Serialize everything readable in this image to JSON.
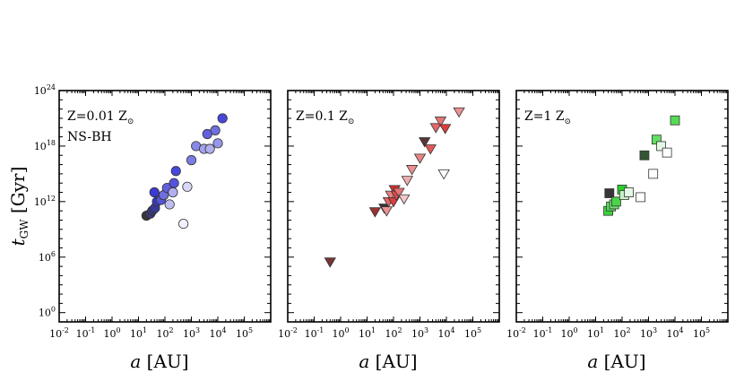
{
  "chart_data": {
    "type": "scatter",
    "x_scale": "log",
    "y_scale": "log",
    "xlim": [
      0.01,
      1000000
    ],
    "ylim": [
      0.1,
      1e+24
    ],
    "ylabel": {
      "main": "t",
      "sub": "GW",
      "unit": " [Gyr]"
    },
    "xlabel": {
      "main": "a",
      "unit": " [AU]"
    },
    "y_ticks": [
      {
        "value": 1,
        "base": "10",
        "exp": "0"
      },
      {
        "value": 1000000.0,
        "base": "10",
        "exp": "6"
      },
      {
        "value": 1000000000000.0,
        "base": "10",
        "exp": "12"
      },
      {
        "value": 1e+18,
        "base": "10",
        "exp": "18"
      },
      {
        "value": 1e+24,
        "base": "10",
        "exp": "24"
      }
    ],
    "x_ticks": [
      {
        "value": 0.01,
        "base": "10",
        "exp": "-2"
      },
      {
        "value": 0.1,
        "base": "10",
        "exp": "-1"
      },
      {
        "value": 1,
        "base": "10",
        "exp": "0"
      },
      {
        "value": 10,
        "base": "10",
        "exp": "1"
      },
      {
        "value": 100,
        "base": "10",
        "exp": "2"
      },
      {
        "value": 1000,
        "base": "10",
        "exp": "3"
      },
      {
        "value": 10000,
        "base": "10",
        "exp": "4"
      },
      {
        "value": 100000,
        "base": "10",
        "exp": "5"
      }
    ],
    "panels": [
      {
        "label": "Z=0.01 Z",
        "solar_symbol": "⊙",
        "sublabel": "NS-BH",
        "marker": "circle",
        "color": "#3a3ad8",
        "points": [
          {
            "x": 20,
            "y": 30000000000.0,
            "shade": 0.0
          },
          {
            "x": 28,
            "y": 50000000000.0,
            "shade": 0.1
          },
          {
            "x": 33,
            "y": 100000000000.0,
            "shade": 0.1
          },
          {
            "x": 42,
            "y": 200000000000.0,
            "shade": 0.15
          },
          {
            "x": 50,
            "y": 1000000000000.0,
            "shade": 0.2
          },
          {
            "x": 40,
            "y": 10000000000000.0,
            "shade": 0.25
          },
          {
            "x": 70,
            "y": 1500000000000.0,
            "shade": 0.35
          },
          {
            "x": 90,
            "y": 5000000000000.0,
            "shade": 0.45
          },
          {
            "x": 120,
            "y": 30000000000000.0,
            "shade": 0.4
          },
          {
            "x": 150,
            "y": 500000000000.0,
            "shade": 0.75
          },
          {
            "x": 200,
            "y": 10000000000000.0,
            "shade": 0.7
          },
          {
            "x": 220,
            "y": 100000000000000.0,
            "shade": 0.35
          },
          {
            "x": 260,
            "y": 2000000000000000.0,
            "shade": 0.3
          },
          {
            "x": 500,
            "y": 4000000000.0,
            "shade": 0.95
          },
          {
            "x": 700,
            "y": 40000000000000.0,
            "shade": 0.85
          },
          {
            "x": 1000,
            "y": 3e+16,
            "shade": 0.5
          },
          {
            "x": 1500,
            "y": 1e+18,
            "shade": 0.55
          },
          {
            "x": 3000,
            "y": 5e+17,
            "shade": 0.65
          },
          {
            "x": 4000,
            "y": 2e+19,
            "shade": 0.4
          },
          {
            "x": 5000,
            "y": 5e+17,
            "shade": 0.7
          },
          {
            "x": 8000,
            "y": 5e+19,
            "shade": 0.45
          },
          {
            "x": 10000,
            "y": 2e+18,
            "shade": 0.6
          },
          {
            "x": 15000,
            "y": 1e+21,
            "shade": 0.3
          }
        ]
      },
      {
        "label": "Z=0.1 Z",
        "solar_symbol": "⊙",
        "sublabel": "",
        "marker": "triangle-down",
        "color": "#d83030",
        "points": [
          {
            "x": 0.4,
            "y": 300000.0,
            "shade": 0.1
          },
          {
            "x": 20,
            "y": 80000000000.0,
            "shade": 0.15
          },
          {
            "x": 45,
            "y": 200000000000.0,
            "shade": 0.0
          },
          {
            "x": 55,
            "y": 100000000000.0,
            "shade": 0.6
          },
          {
            "x": 65,
            "y": 1000000000000.0,
            "shade": 0.45
          },
          {
            "x": 80,
            "y": 5000000000000.0,
            "shade": 0.55
          },
          {
            "x": 100,
            "y": 1000000000000.0,
            "shade": 0.3
          },
          {
            "x": 110,
            "y": 20000000000000.0,
            "shade": 0.25
          },
          {
            "x": 130,
            "y": 5000000000000.0,
            "shade": 0.35
          },
          {
            "x": 160,
            "y": 10000000000000.0,
            "shade": 0.5
          },
          {
            "x": 250,
            "y": 2000000000000.0,
            "shade": 0.8
          },
          {
            "x": 330,
            "y": 200000000000000.0,
            "shade": 0.7
          },
          {
            "x": 500,
            "y": 3000000000000000.0,
            "shade": 0.6
          },
          {
            "x": 1000,
            "y": 5e+16,
            "shade": 0.55
          },
          {
            "x": 1500,
            "y": 3e+18,
            "shade": 0.05
          },
          {
            "x": 2500,
            "y": 5e+17,
            "shade": 0.4
          },
          {
            "x": 4000,
            "y": 1e+20,
            "shade": 0.45
          },
          {
            "x": 6000,
            "y": 5e+20,
            "shade": 0.5
          },
          {
            "x": 8000,
            "y": 1000000000000000.0,
            "shade": 1.0
          },
          {
            "x": 9000,
            "y": 8e+19,
            "shade": 0.3
          },
          {
            "x": 30000,
            "y": 5e+21,
            "shade": 0.6
          }
        ]
      },
      {
        "label": "Z=1 Z",
        "solar_symbol": "⊙",
        "sublabel": "",
        "marker": "square",
        "color": "#2cd02c",
        "points": [
          {
            "x": 30,
            "y": 100000000000.0,
            "shade": 0.3
          },
          {
            "x": 33,
            "y": 8000000000000.0,
            "shade": 0.0
          },
          {
            "x": 38,
            "y": 300000000000.0,
            "shade": 0.4
          },
          {
            "x": 50,
            "y": 500000000000.0,
            "shade": 0.5
          },
          {
            "x": 60,
            "y": 1000000000000.0,
            "shade": 0.35
          },
          {
            "x": 100,
            "y": 20000000000000.0,
            "shade": 0.25
          },
          {
            "x": 120,
            "y": 5000000000000.0,
            "shade": 0.8
          },
          {
            "x": 180,
            "y": 10000000000000.0,
            "shade": 0.9
          },
          {
            "x": 500,
            "y": 3000000000000.0,
            "shade": 1.0
          },
          {
            "x": 700,
            "y": 1e+17,
            "shade": 0.05
          },
          {
            "x": 1500,
            "y": 1000000000000000.0,
            "shade": 1.0
          },
          {
            "x": 2000,
            "y": 5e+18,
            "shade": 0.45
          },
          {
            "x": 3000,
            "y": 1e+18,
            "shade": 0.9
          },
          {
            "x": 5000,
            "y": 2e+17,
            "shade": 1.0
          },
          {
            "x": 10000,
            "y": 6e+20,
            "shade": 0.4
          }
        ]
      }
    ]
  }
}
